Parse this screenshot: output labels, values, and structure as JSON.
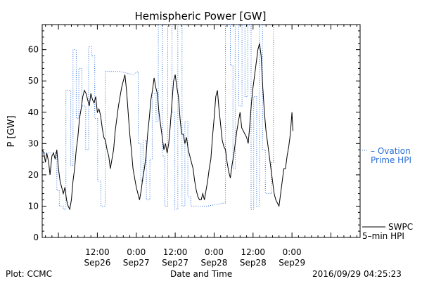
{
  "chart_data": {
    "type": "line",
    "title": "Hemispheric Power [GW]",
    "ylabel": "P [GW]",
    "xlabel": "Date and Time",
    "ylim": [
      0,
      68
    ],
    "yticks": [
      0,
      10,
      20,
      30,
      40,
      50,
      60
    ],
    "xlim_hours": [
      -5,
      93
    ],
    "x_tick_labels": [
      {
        "hour": 12,
        "time": "12:00",
        "date": "Sep26"
      },
      {
        "hour": 24,
        "time": "0:00",
        "date": "Sep27"
      },
      {
        "hour": 36,
        "time": "12:00",
        "date": "Sep27"
      },
      {
        "hour": 48,
        "time": "0:00",
        "date": "Sep28"
      },
      {
        "hour": 60,
        "time": "12:00",
        "date": "Sep28"
      },
      {
        "hour": 72,
        "time": "0:00",
        "date": "Sep29"
      }
    ],
    "x_units_note": "x = hours since 2016-09-26 00:00",
    "series": [
      {
        "name": "Ovation Prime HPI",
        "style": "dotted-step",
        "color": "#2a6fd6",
        "points": [
          [
            -5,
            27
          ],
          [
            -0.5,
            27
          ],
          [
            -0.5,
            15
          ],
          [
            0.3,
            15
          ],
          [
            0.3,
            10
          ],
          [
            1.5,
            10
          ],
          [
            1.5,
            9
          ],
          [
            2.3,
            9
          ],
          [
            2.3,
            47
          ],
          [
            3.8,
            47
          ],
          [
            3.8,
            23
          ],
          [
            4.5,
            23
          ],
          [
            4.5,
            60
          ],
          [
            5.5,
            60
          ],
          [
            5.5,
            38
          ],
          [
            6.3,
            38
          ],
          [
            6.3,
            54
          ],
          [
            7.2,
            54
          ],
          [
            7.2,
            42
          ],
          [
            8.4,
            42
          ],
          [
            8.4,
            28
          ],
          [
            9.3,
            28
          ],
          [
            9.3,
            61
          ],
          [
            10.2,
            61
          ],
          [
            10.2,
            58
          ],
          [
            11.2,
            58
          ],
          [
            11.2,
            38
          ],
          [
            12.1,
            38
          ],
          [
            12.1,
            18
          ],
          [
            13.1,
            18
          ],
          [
            13.1,
            10
          ],
          [
            14.4,
            10
          ],
          [
            14.4,
            53
          ],
          [
            19.0,
            53
          ],
          [
            23.0,
            52
          ],
          [
            24.6,
            53
          ],
          [
            24.6,
            30
          ],
          [
            25.4,
            30
          ],
          [
            25.4,
            18
          ],
          [
            26.1,
            18
          ],
          [
            26.1,
            31
          ],
          [
            27.1,
            31
          ],
          [
            27.1,
            12
          ],
          [
            28.2,
            12
          ],
          [
            28.2,
            25
          ],
          [
            28.9,
            25
          ],
          [
            28.9,
            46
          ],
          [
            30.1,
            46
          ],
          [
            30.1,
            37
          ],
          [
            30.8,
            37
          ],
          [
            30.8,
            68
          ],
          [
            32.0,
            68
          ],
          [
            32.0,
            26
          ],
          [
            32.8,
            26
          ],
          [
            32.8,
            10
          ],
          [
            33.7,
            10
          ],
          [
            33.7,
            68
          ],
          [
            35.0,
            68
          ],
          [
            35.0,
            40
          ],
          [
            35.9,
            40
          ],
          [
            35.9,
            9
          ],
          [
            36.8,
            9
          ],
          [
            36.8,
            68
          ],
          [
            38.1,
            68
          ],
          [
            38.1,
            10
          ],
          [
            39.0,
            10
          ],
          [
            39.0,
            37
          ],
          [
            39.9,
            37
          ],
          [
            39.9,
            13
          ],
          [
            40.8,
            13
          ],
          [
            40.8,
            10
          ],
          [
            46.0,
            10
          ],
          [
            51.0,
            11
          ],
          [
            51.5,
            11
          ],
          [
            51.5,
            68
          ],
          [
            53.0,
            68
          ],
          [
            53.0,
            55
          ],
          [
            53.8,
            55
          ],
          [
            53.8,
            22
          ],
          [
            54.5,
            22
          ],
          [
            54.5,
            68
          ],
          [
            55.6,
            68
          ],
          [
            55.6,
            42
          ],
          [
            56.6,
            42
          ],
          [
            56.6,
            68
          ],
          [
            57.5,
            68
          ],
          [
            57.5,
            45
          ],
          [
            58.4,
            45
          ],
          [
            58.4,
            68
          ],
          [
            59.4,
            68
          ],
          [
            59.4,
            9
          ],
          [
            60.2,
            9
          ],
          [
            60.2,
            45
          ],
          [
            61.1,
            45
          ],
          [
            61.1,
            10
          ],
          [
            62.0,
            10
          ],
          [
            62.0,
            68
          ],
          [
            62.9,
            68
          ],
          [
            62.9,
            28
          ],
          [
            63.8,
            28
          ],
          [
            63.8,
            14
          ],
          [
            65.7,
            14
          ],
          [
            65.7,
            24
          ],
          [
            66.3,
            24
          ],
          [
            66.3,
            68
          ]
        ]
      },
      {
        "name": "SWPC 5-min HPI",
        "style": "solid",
        "color": "#000000",
        "points": [
          [
            -5,
            28
          ],
          [
            -4.5,
            27
          ],
          [
            -4,
            24
          ],
          [
            -3.6,
            27
          ],
          [
            -3,
            24
          ],
          [
            -2.6,
            20
          ],
          [
            -2,
            26
          ],
          [
            -1.5,
            27
          ],
          [
            -1,
            25
          ],
          [
            -0.5,
            28
          ],
          [
            0,
            22
          ],
          [
            0.5,
            18
          ],
          [
            1,
            16
          ],
          [
            1.5,
            14
          ],
          [
            2,
            16
          ],
          [
            2.5,
            12
          ],
          [
            3,
            10
          ],
          [
            3.5,
            9
          ],
          [
            4,
            12
          ],
          [
            4.5,
            18
          ],
          [
            5,
            22
          ],
          [
            5.5,
            28
          ],
          [
            6,
            32
          ],
          [
            6.5,
            38
          ],
          [
            7,
            41
          ],
          [
            7.5,
            45
          ],
          [
            8,
            47
          ],
          [
            8.5,
            46
          ],
          [
            9,
            44
          ],
          [
            9.5,
            42
          ],
          [
            10,
            46
          ],
          [
            10.5,
            44
          ],
          [
            11,
            43
          ],
          [
            11.5,
            45
          ],
          [
            12,
            40
          ],
          [
            12.5,
            41
          ],
          [
            13,
            39
          ],
          [
            13.5,
            35
          ],
          [
            14,
            32
          ],
          [
            14.5,
            31
          ],
          [
            15,
            28
          ],
          [
            15.5,
            26
          ],
          [
            16,
            22
          ],
          [
            16.5,
            25
          ],
          [
            17,
            28
          ],
          [
            17.5,
            34
          ],
          [
            18,
            38
          ],
          [
            18.5,
            42
          ],
          [
            19,
            45
          ],
          [
            19.5,
            48
          ],
          [
            20,
            50
          ],
          [
            20.5,
            52
          ],
          [
            21,
            47
          ],
          [
            21.5,
            40
          ],
          [
            22,
            33
          ],
          [
            22.5,
            28
          ],
          [
            23,
            22
          ],
          [
            23.5,
            19
          ],
          [
            24,
            16
          ],
          [
            24.5,
            14
          ],
          [
            25,
            12
          ],
          [
            25.5,
            15
          ],
          [
            26,
            19
          ],
          [
            26.5,
            22
          ],
          [
            27,
            26
          ],
          [
            27.5,
            33
          ],
          [
            28,
            38
          ],
          [
            28.5,
            44
          ],
          [
            29,
            47
          ],
          [
            29.5,
            51
          ],
          [
            30,
            48
          ],
          [
            30.5,
            46
          ],
          [
            31,
            40
          ],
          [
            31.5,
            36
          ],
          [
            32,
            32
          ],
          [
            32.5,
            28
          ],
          [
            33,
            30
          ],
          [
            33.5,
            27
          ],
          [
            34,
            30
          ],
          [
            34.5,
            36
          ],
          [
            35,
            43
          ],
          [
            35.5,
            50
          ],
          [
            36,
            52
          ],
          [
            36.5,
            48
          ],
          [
            37,
            45
          ],
          [
            37.5,
            38
          ],
          [
            38,
            33
          ],
          [
            38.5,
            33
          ],
          [
            39,
            30
          ],
          [
            39.5,
            32
          ],
          [
            40,
            28
          ],
          [
            40.5,
            26
          ],
          [
            41,
            24
          ],
          [
            41.5,
            22
          ],
          [
            42,
            18
          ],
          [
            42.5,
            15
          ],
          [
            43,
            13
          ],
          [
            43.5,
            12
          ],
          [
            44,
            12
          ],
          [
            44.5,
            14
          ],
          [
            45,
            12
          ],
          [
            45.5,
            15
          ],
          [
            46,
            18
          ],
          [
            46.5,
            22
          ],
          [
            47,
            25
          ],
          [
            47.5,
            32
          ],
          [
            48,
            38
          ],
          [
            48.5,
            45
          ],
          [
            49,
            47
          ],
          [
            49.5,
            41
          ],
          [
            50,
            36
          ],
          [
            50.5,
            31
          ],
          [
            51,
            29
          ],
          [
            51.5,
            28
          ],
          [
            52,
            24
          ],
          [
            52.5,
            21
          ],
          [
            53,
            19
          ],
          [
            53.5,
            23
          ],
          [
            54,
            26
          ],
          [
            54.5,
            30
          ],
          [
            55,
            34
          ],
          [
            55.5,
            37
          ],
          [
            56,
            40
          ],
          [
            56.5,
            35
          ],
          [
            57,
            34
          ],
          [
            57.5,
            33
          ],
          [
            58,
            32
          ],
          [
            58.5,
            30
          ],
          [
            59,
            36
          ],
          [
            59.5,
            43
          ],
          [
            60,
            48
          ],
          [
            60.5,
            52
          ],
          [
            61,
            56
          ],
          [
            61.5,
            60
          ],
          [
            62,
            62
          ],
          [
            62.5,
            58
          ],
          [
            63,
            48
          ],
          [
            63.5,
            40
          ],
          [
            64,
            34
          ],
          [
            64.5,
            30
          ],
          [
            65,
            26
          ],
          [
            65.5,
            22
          ],
          [
            66,
            18
          ],
          [
            66.5,
            14
          ],
          [
            67,
            12
          ],
          [
            67.5,
            11
          ],
          [
            68,
            10
          ],
          [
            68.5,
            14
          ],
          [
            69,
            18
          ],
          [
            69.5,
            22
          ],
          [
            70,
            22
          ],
          [
            70.5,
            26
          ],
          [
            71,
            29
          ],
          [
            71.5,
            33
          ],
          [
            72,
            40
          ],
          [
            72.3,
            34
          ]
        ]
      }
    ],
    "legend": {
      "placement": "right",
      "entries": [
        {
          "line1": "– Ovation",
          "line2": "Prime HPI",
          "color": "#2a6fd6"
        },
        {
          "line1": "SWPC",
          "line2": "5–min HPI",
          "color": "#000000"
        }
      ]
    }
  },
  "footer": {
    "plot_credit": "Plot: CCMC",
    "xlabel": "Date and Time",
    "timestamp": "2016/09/29 04:25:23"
  }
}
